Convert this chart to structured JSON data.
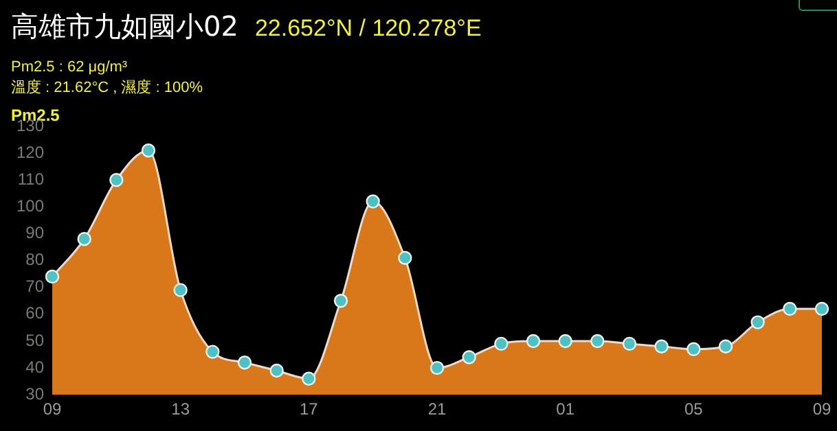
{
  "chart_data": {
    "type": "area",
    "title": "高雄市九如國小02",
    "subtitle": "22.652°N / 120.278°E",
    "annotations": [
      "Pm2.5 : 62 μg/m³",
      "溫度 : 21.62°C , 濕度 : 100%"
    ],
    "ylabel": "Pm2.5",
    "categories": [
      "09",
      null,
      null,
      null,
      "13",
      null,
      null,
      null,
      "17",
      null,
      null,
      null,
      "21",
      null,
      null,
      null,
      "01",
      null,
      null,
      null,
      "05",
      null,
      null,
      null,
      "09"
    ],
    "series": [
      {
        "color": "#d9781a",
        "values": [
          74,
          88,
          110,
          121,
          69,
          46,
          42,
          39,
          36,
          65,
          102,
          81,
          40,
          44,
          49,
          50,
          50,
          50,
          49,
          48,
          47,
          48,
          57,
          62,
          62
        ]
      }
    ],
    "ylim": [
      30,
      130
    ],
    "yticks": [
      30,
      40,
      50,
      60,
      70,
      80,
      90,
      100,
      110,
      120,
      130
    ],
    "marker": "circle"
  }
}
